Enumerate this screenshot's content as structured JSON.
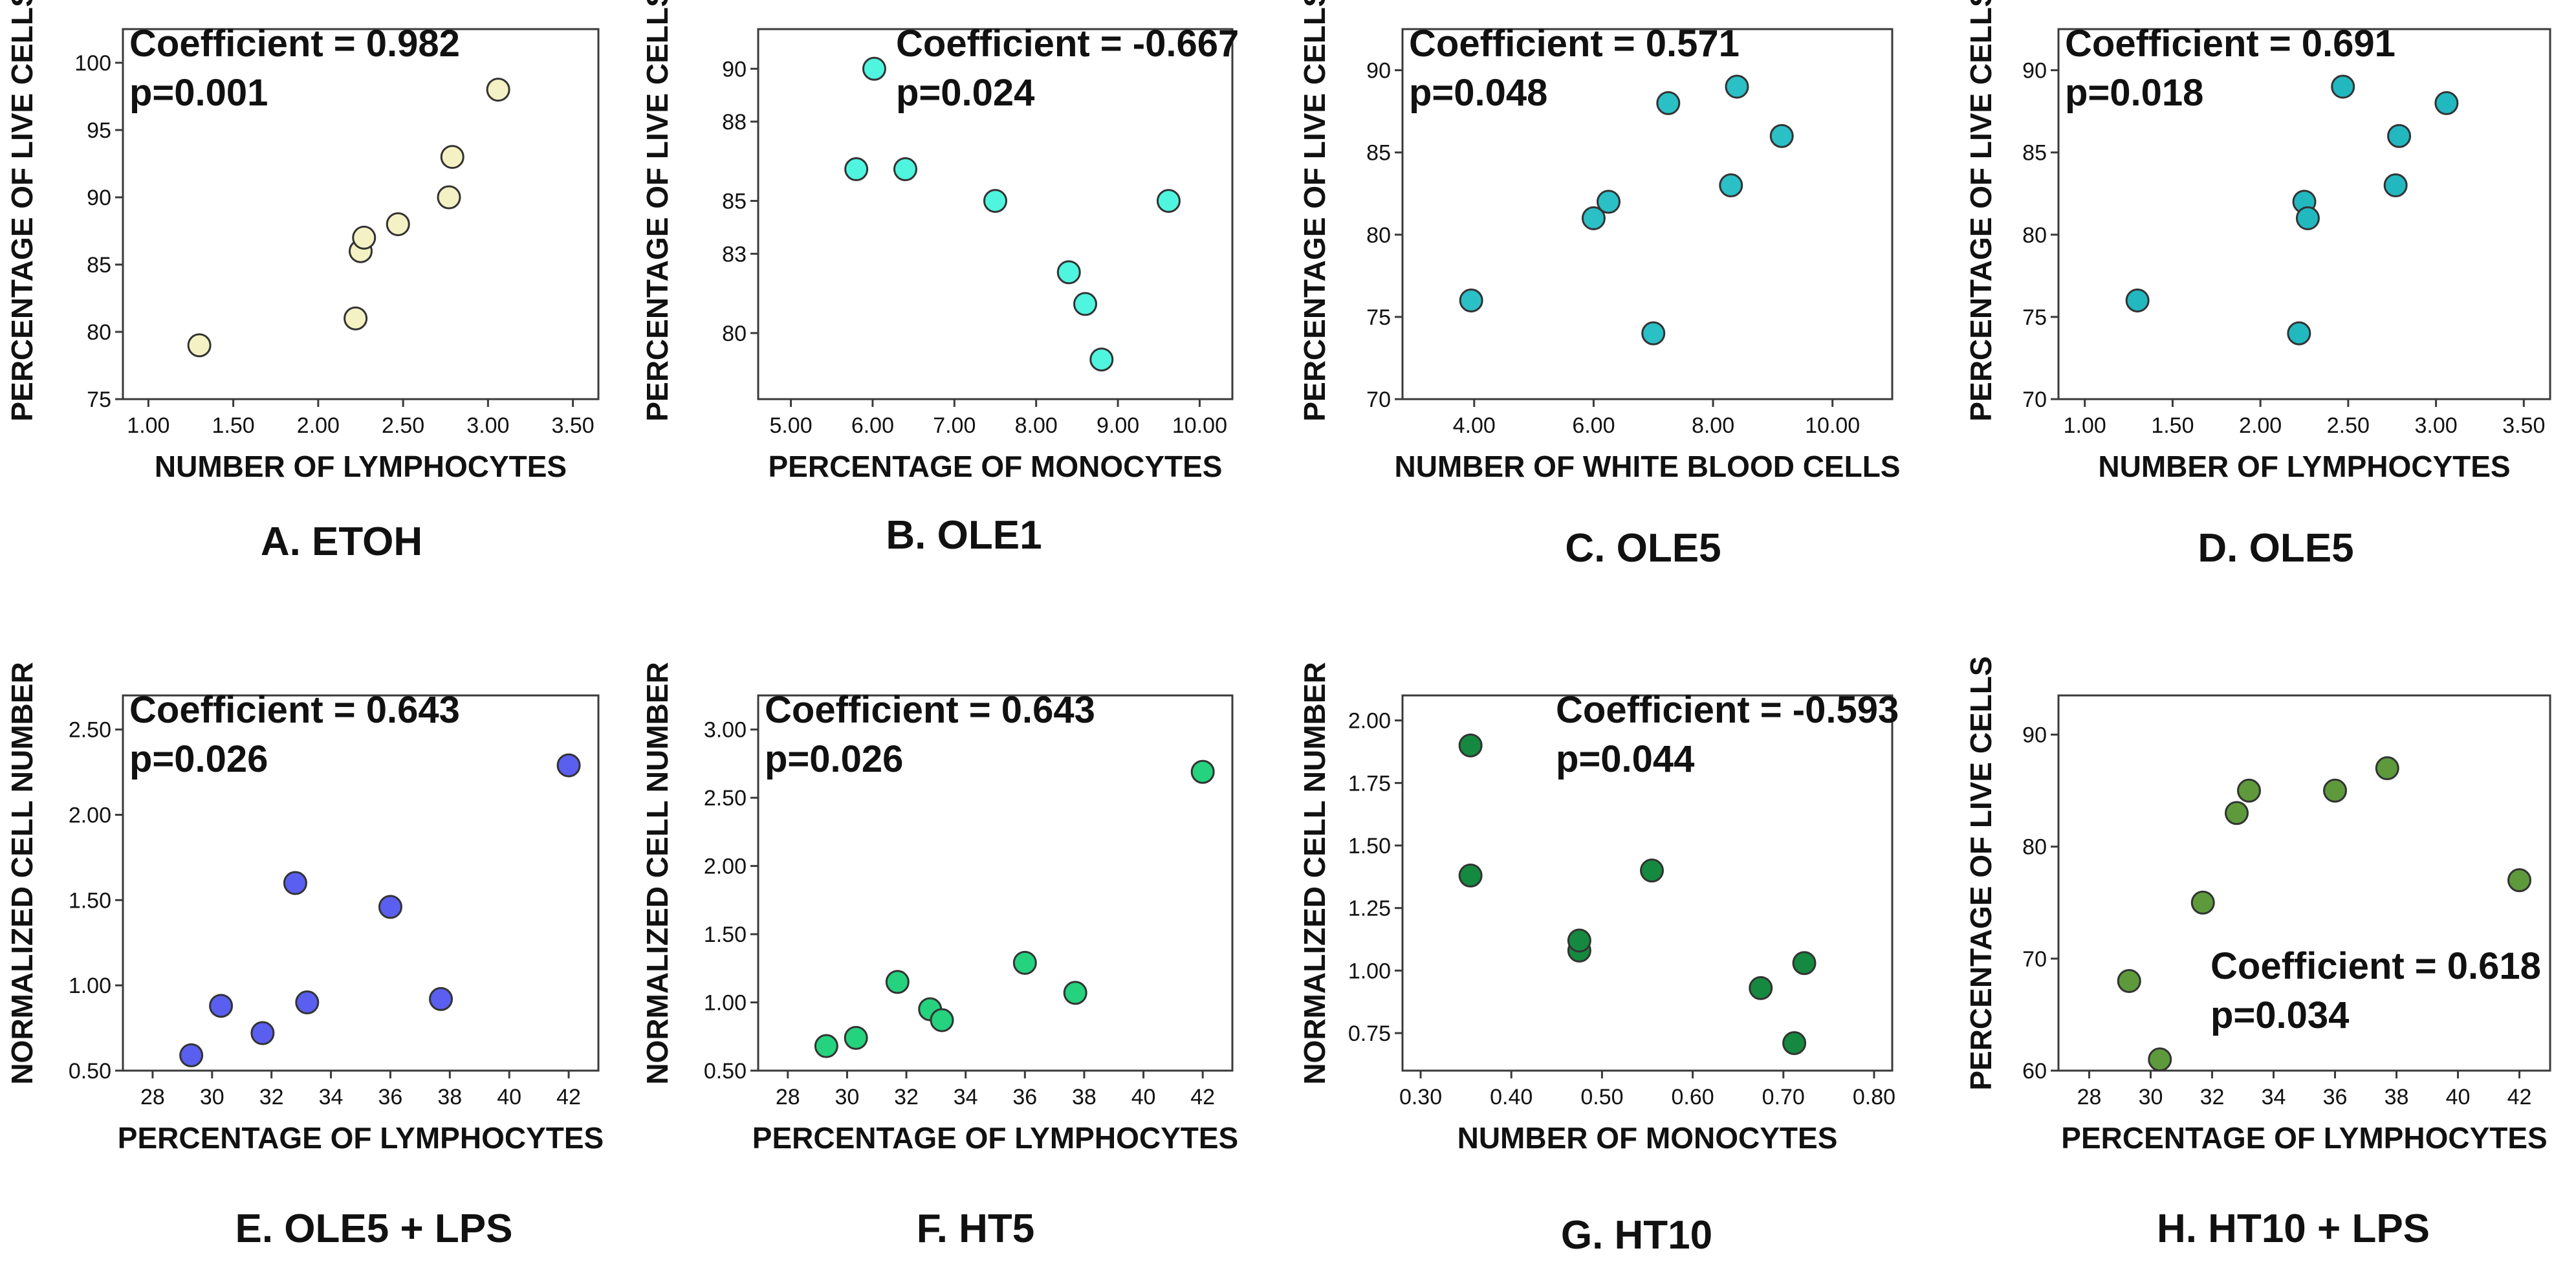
{
  "chart_data": [
    {
      "type": "scatter",
      "panel": "A",
      "caption": "A. ETOH",
      "xlabel": "NUMBER OF LYMPHOCYTES",
      "ylabel": "PERCENTAGE OF LIVE CELLS",
      "xlim": [
        0.85,
        3.65
      ],
      "ylim": [
        75,
        102.5
      ],
      "xticks": [
        "1.00",
        "1.50",
        "2.00",
        "2.50",
        "3.00",
        "3.50"
      ],
      "yticks": [
        "75",
        "80",
        "85",
        "90",
        "95",
        "100"
      ],
      "coefficient": "Coefficient = 0.982",
      "pvalue": "p=0.001",
      "stats_position": "top-left",
      "color": "#f4f2c4",
      "x": [
        1.3,
        2.22,
        2.25,
        2.27,
        2.47,
        2.77,
        2.79,
        3.06
      ],
      "y": [
        79,
        81,
        86,
        87,
        88,
        90,
        93,
        98
      ]
    },
    {
      "type": "scatter",
      "panel": "B",
      "caption": "B. OLE1",
      "xlabel": "PERCENTAGE OF MONOCYTES",
      "ylabel": "PERCENTAGE OF LIVE CELLS",
      "xlim": [
        4.6,
        10.4
      ],
      "ylim": [
        77.5,
        91.5
      ],
      "xticks": [
        "5.00",
        "6.00",
        "7.00",
        "8.00",
        "9.00",
        "10.00"
      ],
      "yticks": [
        "80",
        "83",
        "85",
        "88",
        "90"
      ],
      "coefficient": "Coefficient = -0.667",
      "pvalue": "p=0.024",
      "stats_position": "top-right",
      "color": "#4ff5df",
      "x": [
        5.8,
        6.02,
        6.4,
        7.5,
        8.4,
        8.6,
        8.8,
        9.62
      ],
      "y": [
        86.2,
        90.0,
        86.2,
        85.0,
        82.3,
        81.1,
        79.0,
        85.0
      ]
    },
    {
      "type": "scatter",
      "panel": "C",
      "caption": "C. OLE5",
      "xlabel": "NUMBER OF WHITE BLOOD CELLS",
      "ylabel": "PERCENTAGE OF LIVE CELLS",
      "xlim": [
        2.8,
        11.0
      ],
      "ylim": [
        70,
        92.5
      ],
      "xticks": [
        "4.00",
        "6.00",
        "8.00",
        "10.00"
      ],
      "yticks": [
        "70",
        "75",
        "80",
        "85",
        "90"
      ],
      "coefficient": "Coefficient = 0.571",
      "pvalue": "p=0.048",
      "stats_position": "top-left",
      "color": "#2bbfc6",
      "x": [
        3.95,
        6.0,
        6.25,
        7.0,
        7.25,
        8.3,
        8.4,
        9.15
      ],
      "y": [
        76,
        81,
        82,
        74,
        88,
        83,
        89,
        86
      ]
    },
    {
      "type": "scatter",
      "panel": "D",
      "caption": "D. OLE5",
      "xlabel": "NUMBER OF LYMPHOCYTES",
      "ylabel": "PERCENTAGE OF LIVE CELLS",
      "xlim": [
        0.85,
        3.65
      ],
      "ylim": [
        70,
        92.5
      ],
      "xticks": [
        "1.00",
        "1.50",
        "2.00",
        "2.50",
        "3.00",
        "3.50"
      ],
      "yticks": [
        "70",
        "75",
        "80",
        "85",
        "90"
      ],
      "coefficient": "Coefficient = 0.691",
      "pvalue": "p=0.018",
      "stats_position": "top-left",
      "color": "#22b8c0",
      "x": [
        1.3,
        2.22,
        2.25,
        2.27,
        2.47,
        2.77,
        2.79,
        3.06
      ],
      "y": [
        76,
        74,
        82,
        81,
        89,
        83,
        86,
        88
      ]
    },
    {
      "type": "scatter",
      "panel": "E",
      "caption": "E. OLE5 + LPS",
      "xlabel": "PERCENTAGE OF LYMPHOCYTES",
      "ylabel": "NORMALIZED CELL NUMBER",
      "xlim": [
        27,
        43
      ],
      "ylim": [
        0.5,
        2.7
      ],
      "xticks": [
        "28",
        "30",
        "32",
        "34",
        "36",
        "38",
        "40",
        "42"
      ],
      "yticks": [
        "0.50",
        "1.00",
        "1.50",
        "2.00",
        "2.50"
      ],
      "coefficient": "Coefficient = 0.643",
      "pvalue": "p=0.026",
      "stats_position": "top-left",
      "color": "#5a5ff0",
      "x": [
        29.3,
        30.3,
        31.7,
        32.8,
        33.2,
        36.0,
        37.7,
        42.0
      ],
      "y": [
        0.59,
        0.88,
        0.72,
        1.6,
        0.9,
        1.46,
        0.92,
        2.29
      ]
    },
    {
      "type": "scatter",
      "panel": "F",
      "caption": "F. HT5",
      "xlabel": "PERCENTAGE OF LYMPHOCYTES",
      "ylabel": "NORMALIZED CELL NUMBER",
      "xlim": [
        27,
        43
      ],
      "ylim": [
        0.5,
        3.25
      ],
      "xticks": [
        "28",
        "30",
        "32",
        "34",
        "36",
        "38",
        "40",
        "42"
      ],
      "yticks": [
        "0.50",
        "1.00",
        "1.50",
        "2.00",
        "2.50",
        "3.00"
      ],
      "coefficient": "Coefficient = 0.643",
      "pvalue": "p=0.026",
      "stats_position": "top-left",
      "color": "#25d27e",
      "x": [
        29.3,
        30.3,
        31.7,
        32.8,
        33.2,
        36.0,
        37.7,
        42.0
      ],
      "y": [
        0.68,
        0.74,
        1.15,
        0.95,
        0.87,
        1.29,
        1.07,
        2.69
      ]
    },
    {
      "type": "scatter",
      "panel": "G",
      "caption": "G. HT10",
      "xlabel": "NUMBER OF MONOCYTES",
      "ylabel": "NORMALIZED CELL NUMBER",
      "xlim": [
        0.28,
        0.82
      ],
      "ylim": [
        0.6,
        2.1
      ],
      "xticks": [
        "0.30",
        "0.40",
        "0.50",
        "0.60",
        "0.70",
        "0.80"
      ],
      "yticks": [
        "0.75",
        "1.00",
        "1.25",
        "1.50",
        "1.75",
        "2.00"
      ],
      "coefficient": "Coefficient = -0.593",
      "pvalue": "p=0.044",
      "stats_position": "top-right",
      "color": "#15893f",
      "x": [
        0.355,
        0.355,
        0.475,
        0.475,
        0.555,
        0.675,
        0.712,
        0.723
      ],
      "y": [
        1.9,
        1.38,
        1.08,
        1.12,
        1.4,
        0.93,
        0.71,
        1.03
      ]
    },
    {
      "type": "scatter",
      "panel": "H",
      "caption": "H. HT10 + LPS",
      "xlabel": "PERCENTAGE OF LYMPHOCYTES",
      "ylabel": "PERCENTAGE OF LIVE CELLS",
      "xlim": [
        27,
        43
      ],
      "ylim": [
        60,
        93.5
      ],
      "xticks": [
        "28",
        "30",
        "32",
        "34",
        "36",
        "38",
        "40",
        "42"
      ],
      "yticks": [
        "60",
        "70",
        "80",
        "90"
      ],
      "coefficient": "Coefficient = 0.618",
      "pvalue": "p=0.034",
      "stats_position": "bottom-right",
      "color": "#5e9a3c",
      "x": [
        29.3,
        30.3,
        31.7,
        32.8,
        33.2,
        36.0,
        37.7,
        42.0
      ],
      "y": [
        68,
        61,
        75,
        83,
        85,
        85,
        87,
        77
      ]
    }
  ]
}
